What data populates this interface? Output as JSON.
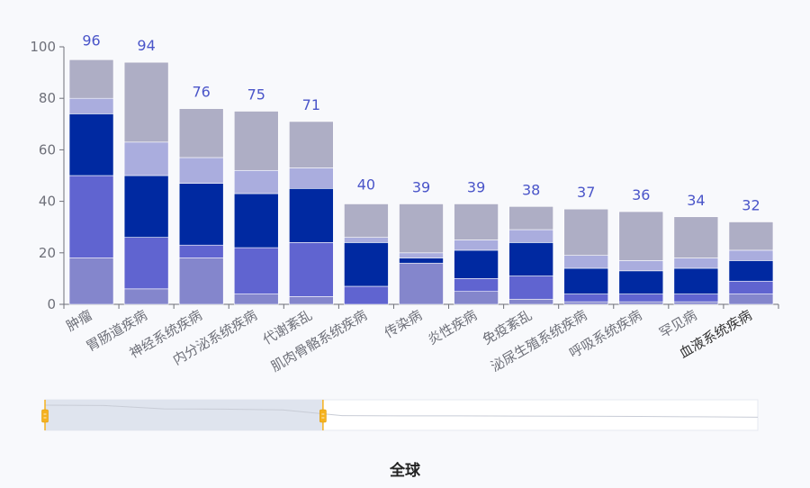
{
  "footer": {
    "title": "全球"
  },
  "colors": {
    "segments": [
      "#8486cc",
      "#6064d0",
      "#0029a1",
      "#aaadde",
      "#aeaec5"
    ],
    "axis": "#6e7079",
    "total_label": "#4a55c9",
    "slider_handle": "#f5b21f",
    "slider_window": "#dfe4ee"
  },
  "chart_data": {
    "type": "bar",
    "stacked": true,
    "categories": [
      "肿瘤",
      "胃肠道疾病",
      "神经系统疾病",
      "内分泌系统疾病",
      "代谢紊乱",
      "肌肉骨骼系统疾病",
      "传染病",
      "炎性疾病",
      "免疫紊乱",
      "泌尿生殖系统疾病",
      "呼吸系统疾病",
      "罕见病",
      "血液系统疾病"
    ],
    "totals": [
      96,
      94,
      76,
      75,
      71,
      40,
      39,
      39,
      38,
      37,
      36,
      34,
      32
    ],
    "series": [
      {
        "values": [
          18,
          6,
          18,
          4,
          3,
          0,
          16,
          5,
          2,
          1,
          1,
          1,
          4
        ]
      },
      {
        "values": [
          32,
          20,
          5,
          18,
          21,
          7,
          0,
          5,
          9,
          3,
          3,
          3,
          5
        ]
      },
      {
        "values": [
          24,
          24,
          24,
          21,
          21,
          17,
          2,
          11,
          13,
          10,
          9,
          10,
          8
        ]
      },
      {
        "values": [
          6,
          13,
          10,
          9,
          8,
          2,
          2,
          4,
          5,
          5,
          4,
          4,
          4
        ]
      },
      {
        "values": [
          15,
          31,
          19,
          23,
          18,
          13,
          19,
          14,
          9,
          18,
          19,
          16,
          11
        ]
      }
    ],
    "ylim": [
      0,
      100
    ],
    "yticks": [
      0,
      20,
      40,
      60,
      80,
      100
    ],
    "highlighted_category": "血液系统疾病",
    "zoom": {
      "start_fraction": 0,
      "end_fraction": 0.39
    }
  }
}
